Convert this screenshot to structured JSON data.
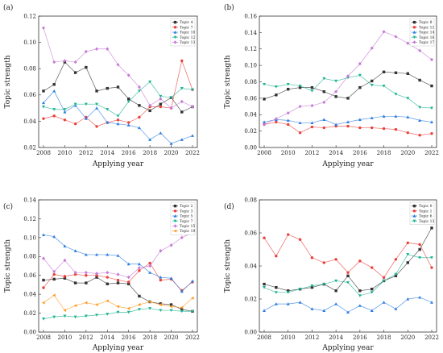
{
  "figure": {
    "x_years": [
      2008,
      2009,
      2010,
      2011,
      2012,
      2013,
      2014,
      2015,
      2016,
      2017,
      2018,
      2019,
      2020,
      2021,
      2022
    ]
  },
  "chart_data": [
    {
      "type": "line",
      "panel_label": "(a)",
      "xlabel": "Applying year",
      "ylabel": "Topic strength",
      "xlim": [
        2008,
        2022
      ],
      "xticks": [
        2008,
        2010,
        2012,
        2014,
        2016,
        2018,
        2020,
        2022
      ],
      "ylim": [
        0.02,
        0.12
      ],
      "yticks": [
        "0.02",
        "0.04",
        "0.06",
        "0.08",
        "0.10",
        "0.12"
      ],
      "grid": false,
      "legend_position": "top-right",
      "series": [
        {
          "name": "Topic 4",
          "color": "#333333",
          "values": [
            0.063,
            0.068,
            0.085,
            0.077,
            0.081,
            0.063,
            0.065,
            0.066,
            0.057,
            0.052,
            0.048,
            0.053,
            0.058,
            0.047,
            0.051
          ]
        },
        {
          "name": "Topic 7",
          "color": "#e8413c",
          "values": [
            0.042,
            0.044,
            0.041,
            0.038,
            0.043,
            0.036,
            0.039,
            0.041,
            0.039,
            0.043,
            0.051,
            0.051,
            0.05,
            0.086,
            0.064
          ]
        },
        {
          "name": "Topic 10",
          "color": "#2e7de0",
          "values": [
            0.054,
            0.063,
            0.047,
            0.052,
            0.042,
            0.05,
            0.039,
            0.038,
            0.037,
            0.035,
            0.026,
            0.031,
            0.023,
            0.026,
            0.029
          ]
        },
        {
          "name": "Topic 12",
          "color": "#1fb393",
          "values": [
            0.051,
            0.049,
            0.049,
            0.053,
            0.053,
            0.053,
            0.049,
            0.044,
            0.055,
            0.063,
            0.07,
            0.059,
            0.058,
            0.065,
            0.064
          ]
        },
        {
          "name": "Topic 13",
          "color": "#c77ad6",
          "values": [
            0.111,
            0.085,
            0.086,
            0.085,
            0.093,
            0.095,
            0.095,
            0.083,
            0.075,
            0.066,
            0.052,
            0.057,
            0.05,
            0.055,
            0.051
          ]
        }
      ]
    },
    {
      "type": "line",
      "panel_label": "(b)",
      "xlabel": "Applying year",
      "ylabel": "Topic strength",
      "xlim": [
        2008,
        2022
      ],
      "xticks": [
        2008,
        2010,
        2012,
        2014,
        2016,
        2018,
        2020,
        2022
      ],
      "ylim": [
        0.0,
        0.16
      ],
      "yticks": [
        "0.00",
        "0.02",
        "0.04",
        "0.06",
        "0.08",
        "0.10",
        "0.12",
        "0.14",
        "0.16"
      ],
      "grid": false,
      "legend_position": "top-right",
      "series": [
        {
          "name": "Topic 8",
          "color": "#333333",
          "values": [
            0.059,
            0.064,
            0.071,
            0.073,
            0.073,
            0.068,
            0.062,
            0.06,
            0.073,
            0.081,
            0.092,
            0.091,
            0.09,
            0.082,
            0.075
          ]
        },
        {
          "name": "Topic 11",
          "color": "#e8413c",
          "values": [
            0.028,
            0.031,
            0.028,
            0.018,
            0.025,
            0.024,
            0.026,
            0.026,
            0.024,
            0.024,
            0.023,
            0.022,
            0.018,
            0.015,
            0.017
          ]
        },
        {
          "name": "Topic 14",
          "color": "#2e7de0",
          "values": [
            0.031,
            0.034,
            0.033,
            0.03,
            0.03,
            0.034,
            0.028,
            0.031,
            0.034,
            0.036,
            0.038,
            0.038,
            0.037,
            0.033,
            0.031
          ]
        },
        {
          "name": "Topic 16",
          "color": "#1fb393",
          "values": [
            0.077,
            0.074,
            0.077,
            0.075,
            0.069,
            0.084,
            0.081,
            0.085,
            0.088,
            0.076,
            0.075,
            0.065,
            0.06,
            0.049,
            0.048
          ]
        },
        {
          "name": "Topic 17",
          "color": "#c77ad6",
          "values": [
            0.028,
            0.035,
            0.042,
            0.05,
            0.051,
            0.055,
            0.068,
            0.087,
            0.102,
            0.121,
            0.141,
            0.135,
            0.127,
            0.118,
            0.107
          ]
        }
      ]
    },
    {
      "type": "line",
      "panel_label": "(c)",
      "xlabel": "Applying year",
      "ylabel": "Topic strength",
      "xlim": [
        2008,
        2022
      ],
      "xticks": [
        2008,
        2010,
        2012,
        2014,
        2016,
        2018,
        2020,
        2022
      ],
      "ylim": [
        0.0,
        0.14
      ],
      "yticks": [
        "0.00",
        "0.02",
        "0.04",
        "0.06",
        "0.08",
        "0.10",
        "0.12",
        "0.14"
      ],
      "grid": false,
      "legend_position": "top-right",
      "series": [
        {
          "name": "Topic 2",
          "color": "#333333",
          "values": [
            0.055,
            0.056,
            0.057,
            0.052,
            0.052,
            0.058,
            0.051,
            0.052,
            0.051,
            0.038,
            0.032,
            0.03,
            0.029,
            0.024,
            0.022
          ]
        },
        {
          "name": "Topic 3",
          "color": "#e8413c",
          "values": [
            0.047,
            0.061,
            0.059,
            0.061,
            0.06,
            0.06,
            0.058,
            0.055,
            0.053,
            0.065,
            0.073,
            0.055,
            0.056,
            0.044,
            0.053
          ]
        },
        {
          "name": "Topic 5",
          "color": "#2e7de0",
          "values": [
            0.103,
            0.101,
            0.091,
            0.086,
            0.082,
            0.082,
            0.082,
            0.081,
            0.072,
            0.072,
            0.063,
            0.058,
            0.057,
            0.043,
            0.054
          ]
        },
        {
          "name": "Topic 7",
          "color": "#1fb393",
          "values": [
            0.014,
            0.016,
            0.017,
            0.016,
            0.017,
            0.018,
            0.019,
            0.021,
            0.021,
            0.024,
            0.025,
            0.023,
            0.023,
            0.022,
            0.022
          ]
        },
        {
          "name": "Topic 15",
          "color": "#c77ad6",
          "values": [
            0.078,
            0.064,
            0.076,
            0.063,
            0.063,
            0.062,
            0.063,
            0.061,
            0.058,
            0.068,
            0.07,
            0.086,
            0.092,
            0.1,
            0.105
          ]
        },
        {
          "name": "Topic 19",
          "color": "#ff9a1f",
          "values": [
            0.031,
            0.039,
            0.023,
            0.028,
            0.031,
            0.029,
            0.033,
            0.027,
            0.025,
            0.029,
            0.032,
            0.029,
            0.027,
            0.026,
            0.036
          ]
        }
      ]
    },
    {
      "type": "line",
      "panel_label": "(d)",
      "xlabel": "Applying year",
      "ylabel": "Topic strength",
      "xlim": [
        2008,
        2022
      ],
      "xticks": [
        2008,
        2010,
        2012,
        2014,
        2016,
        2018,
        2020,
        2022
      ],
      "ylim": [
        0.0,
        0.08
      ],
      "yticks": [
        "0.00",
        "0.02",
        "0.04",
        "0.06",
        "0.08"
      ],
      "grid": false,
      "legend_position": "top-right",
      "series": [
        {
          "name": "Topic 0",
          "color": "#333333",
          "values": [
            0.029,
            0.027,
            0.025,
            0.026,
            0.027,
            0.029,
            0.025,
            0.034,
            0.025,
            0.026,
            0.031,
            0.034,
            0.042,
            0.05,
            0.063
          ]
        },
        {
          "name": "Topic 1",
          "color": "#e8413c",
          "values": [
            0.057,
            0.046,
            0.059,
            0.056,
            0.045,
            0.042,
            0.044,
            0.036,
            0.043,
            0.039,
            0.033,
            0.044,
            0.054,
            0.053,
            0.039
          ]
        },
        {
          "name": "Topic 6",
          "color": "#2e7de0",
          "values": [
            0.013,
            0.017,
            0.017,
            0.018,
            0.014,
            0.013,
            0.017,
            0.012,
            0.016,
            0.013,
            0.018,
            0.014,
            0.02,
            0.021,
            0.018
          ]
        },
        {
          "name": "Topic 13",
          "color": "#1fb393",
          "values": [
            0.027,
            0.024,
            0.024,
            0.026,
            0.028,
            0.029,
            0.031,
            0.03,
            0.022,
            0.024,
            0.031,
            0.035,
            0.047,
            0.045,
            0.045
          ]
        }
      ]
    }
  ]
}
